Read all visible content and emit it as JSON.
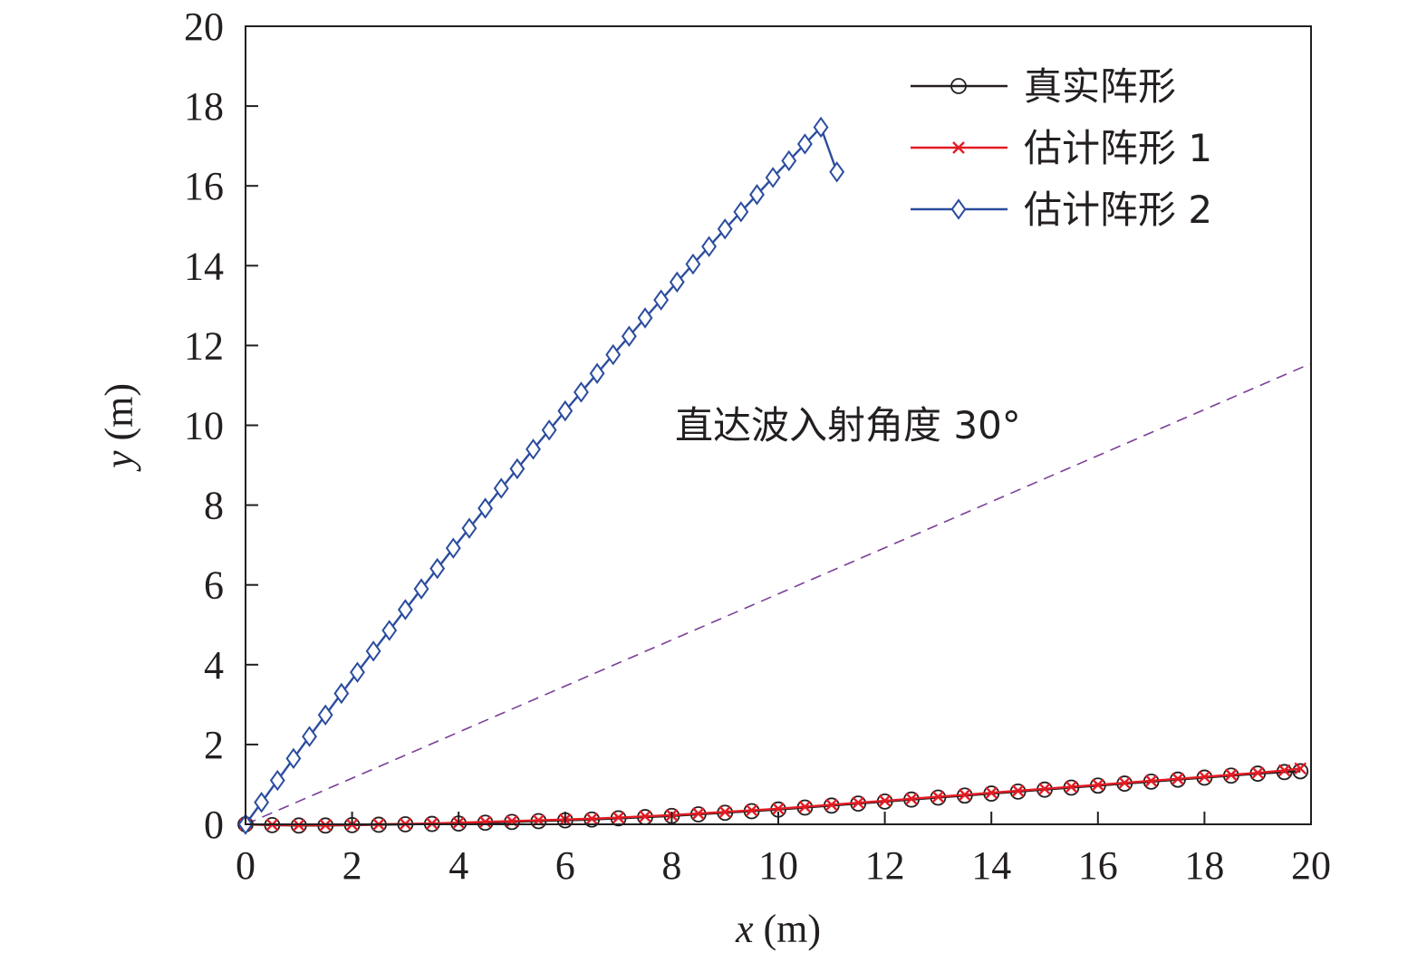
{
  "chart_data": {
    "type": "line",
    "xlabel_var": "x",
    "xlabel_unit": " (m)",
    "ylabel_var": "y",
    "ylabel_unit": " (m)",
    "xlim": [
      0,
      20
    ],
    "ylim": [
      0,
      20
    ],
    "xticks": [
      0,
      2,
      4,
      6,
      8,
      10,
      12,
      14,
      16,
      18,
      20
    ],
    "yticks": [
      0,
      2,
      4,
      6,
      8,
      10,
      12,
      14,
      16,
      18,
      20
    ],
    "grid": false,
    "legend_position": "top-right",
    "series": [
      {
        "name": "真实阵形",
        "color": "#231f20",
        "marker": "circle",
        "x": [
          0.0,
          0.5,
          1.0,
          1.5,
          2.0,
          2.5,
          3.0,
          3.5,
          4.0,
          4.5,
          5.0,
          5.5,
          6.0,
          6.5,
          7.0,
          7.5,
          8.0,
          8.5,
          9.0,
          9.5,
          10.0,
          10.5,
          11.0,
          11.5,
          12.0,
          12.5,
          13.0,
          13.5,
          14.0,
          14.5,
          15.0,
          15.5,
          16.0,
          16.5,
          17.0,
          17.5,
          18.0,
          18.5,
          19.0,
          19.5,
          19.8
        ],
        "y": [
          0.0,
          -0.02,
          -0.03,
          -0.03,
          -0.02,
          -0.01,
          0.0,
          0.01,
          0.02,
          0.04,
          0.06,
          0.08,
          0.1,
          0.12,
          0.15,
          0.18,
          0.21,
          0.25,
          0.29,
          0.33,
          0.37,
          0.42,
          0.47,
          0.52,
          0.57,
          0.62,
          0.67,
          0.72,
          0.77,
          0.82,
          0.87,
          0.92,
          0.97,
          1.02,
          1.07,
          1.12,
          1.17,
          1.22,
          1.27,
          1.31,
          1.33
        ]
      },
      {
        "name": "估计阵形 1",
        "color": "#e31b23",
        "marker": "x",
        "x": [
          0.0,
          0.5,
          1.0,
          1.5,
          2.0,
          2.5,
          3.0,
          3.5,
          4.0,
          4.5,
          5.0,
          5.5,
          6.0,
          6.5,
          7.0,
          7.5,
          8.0,
          8.5,
          9.0,
          9.5,
          10.0,
          10.5,
          11.0,
          11.5,
          12.0,
          12.5,
          13.0,
          13.5,
          14.0,
          14.5,
          15.0,
          15.5,
          16.0,
          16.5,
          17.0,
          17.5,
          18.0,
          18.5,
          19.0,
          19.5,
          19.8
        ],
        "y": [
          0.0,
          -0.01,
          -0.02,
          -0.02,
          -0.01,
          0.0,
          0.01,
          0.02,
          0.04,
          0.06,
          0.08,
          0.1,
          0.12,
          0.14,
          0.17,
          0.2,
          0.23,
          0.27,
          0.31,
          0.35,
          0.39,
          0.44,
          0.49,
          0.54,
          0.59,
          0.64,
          0.69,
          0.74,
          0.79,
          0.84,
          0.89,
          0.94,
          0.99,
          1.04,
          1.09,
          1.14,
          1.19,
          1.24,
          1.29,
          1.35,
          1.4
        ]
      },
      {
        "name": "估计阵形 2",
        "color": "#2b4c9e",
        "marker": "diamond",
        "x": [
          0.0,
          0.3,
          0.6,
          0.9,
          1.2,
          1.5,
          1.8,
          2.1,
          2.4,
          2.7,
          3.0,
          3.3,
          3.6,
          3.9,
          4.2,
          4.5,
          4.8,
          5.1,
          5.4,
          5.7,
          6.0,
          6.3,
          6.6,
          6.9,
          7.2,
          7.5,
          7.8,
          8.1,
          8.4,
          8.7,
          9.0,
          9.3,
          9.6,
          9.9,
          10.2,
          10.5,
          10.8,
          11.1
        ],
        "y": [
          0.0,
          0.55,
          1.1,
          1.65,
          2.2,
          2.74,
          3.28,
          3.81,
          4.34,
          4.86,
          5.38,
          5.9,
          6.41,
          6.92,
          7.42,
          7.92,
          8.42,
          8.91,
          9.4,
          9.88,
          10.36,
          10.83,
          11.3,
          11.77,
          12.23,
          12.69,
          13.14,
          13.59,
          14.04,
          14.48,
          14.92,
          15.35,
          15.78,
          16.21,
          16.63,
          17.05,
          17.47,
          16.35
        ]
      }
    ],
    "reference_line": {
      "angle_deg": 30,
      "x": [
        0,
        20
      ],
      "y": [
        0,
        11.55
      ],
      "color": "#7b3f98",
      "style": "dashed"
    },
    "annotation": "直达波入射角度 30°"
  }
}
